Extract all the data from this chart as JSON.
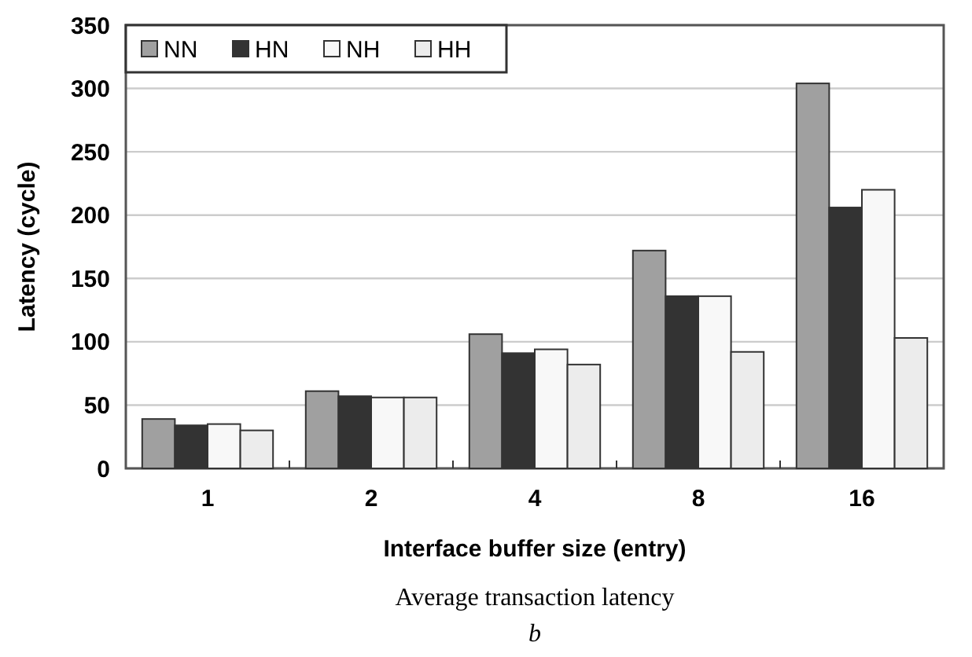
{
  "chart_data": {
    "type": "bar",
    "title": "Average transaction latency",
    "annotations": [
      "b"
    ],
    "xlabel": "Interface buffer size (entry)",
    "ylabel": "Latency (cycle)",
    "categories": [
      "1",
      "2",
      "4",
      "8",
      "16"
    ],
    "series": [
      {
        "name": "NN",
        "color": "#a0a0a0",
        "values": [
          39,
          61,
          106,
          172,
          304
        ]
      },
      {
        "name": "HN",
        "color": "#333333",
        "values": [
          34,
          57,
          91,
          136,
          206
        ]
      },
      {
        "name": "NH",
        "color": "#f8f8f8",
        "values": [
          35,
          56,
          94,
          136,
          220
        ]
      },
      {
        "name": "HH",
        "color": "#ececec",
        "values": [
          30,
          56,
          82,
          92,
          103
        ]
      }
    ],
    "ylim": [
      0,
      350
    ],
    "yticks": [
      0,
      50,
      100,
      150,
      200,
      250,
      300,
      350
    ],
    "grid": "y",
    "legend": "top left"
  }
}
